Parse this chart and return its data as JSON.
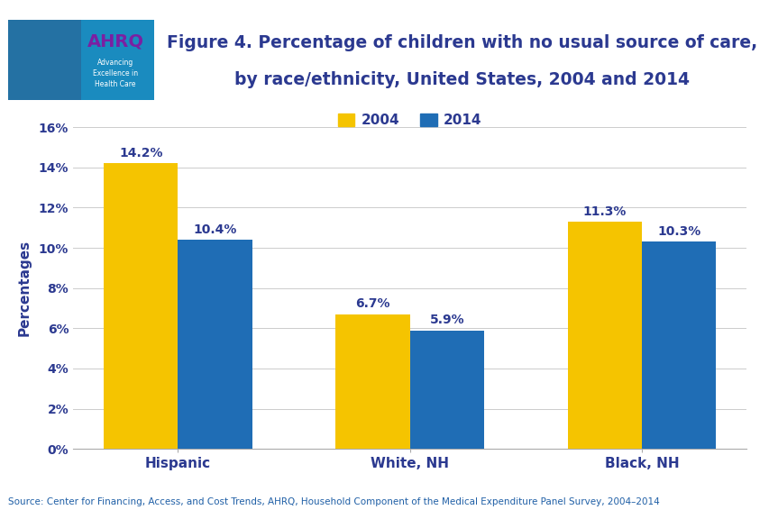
{
  "title_line1": "Figure 4. Percentage of children with no usual source of care,",
  "title_line2": "by race/ethnicity, United States, 2004 and 2014",
  "categories": [
    "Hispanic",
    "White, NH",
    "Black, NH"
  ],
  "values_2004": [
    14.2,
    6.7,
    11.3
  ],
  "values_2014": [
    10.4,
    5.9,
    10.3
  ],
  "color_2004": "#F5C400",
  "color_2014": "#1F6DB5",
  "ylabel": "Percentages",
  "ylim": [
    0,
    16
  ],
  "yticks": [
    0,
    2,
    4,
    6,
    8,
    10,
    12,
    14,
    16
  ],
  "ytick_labels": [
    "0%",
    "2%",
    "4%",
    "6%",
    "8%",
    "10%",
    "12%",
    "14%",
    "16%"
  ],
  "legend_labels": [
    "2004",
    "2014"
  ],
  "source_text": "Source: Center for Financing, Access, and Cost Trends, AHRQ, Household Component of the Medical Expenditure Panel Survey, 2004–2014",
  "top_bar_color": "#2B3990",
  "label_color": "#2B3990",
  "background_color": "#FFFFFF",
  "bar_width": 0.32,
  "logo_bg": "#1A8BBF",
  "logo_text_color": "#7B1FA2",
  "logo_subtext_color": "#FFFFFF"
}
